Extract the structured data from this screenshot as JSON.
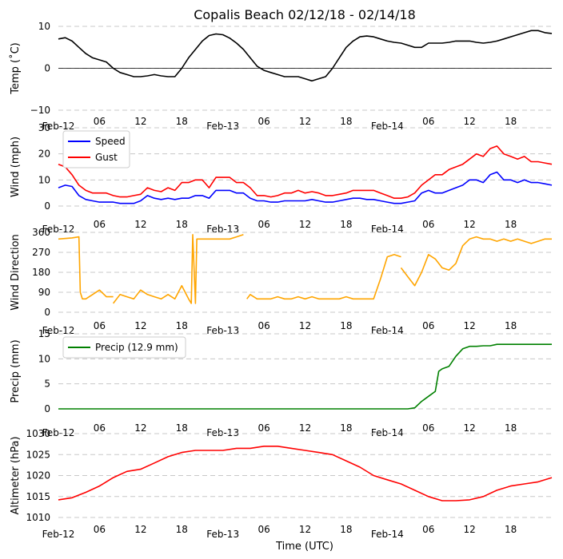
{
  "title": "Copalis Beach 02/12/18 - 02/14/18",
  "xlabel": "Time (UTC)",
  "x_tick_labels": [
    "Feb-12",
    "06",
    "12",
    "18",
    "Feb-13",
    "06",
    "12",
    "18",
    "Feb-14",
    "06",
    "12",
    "18"
  ],
  "chart_data": [
    {
      "type": "line",
      "ylabel": "Temp (˚C)",
      "ylim": [
        -10,
        10
      ],
      "yticks": [
        "10",
        "0",
        "−10"
      ],
      "zero_line": true,
      "grid": "horizontal dashed",
      "x_unit": "hours since 2018-02-12 00:00 UTC",
      "series": [
        {
          "color": "#000000",
          "x": [
            0,
            1,
            2,
            3,
            4,
            5,
            6,
            7,
            8,
            9,
            10,
            11,
            12,
            13,
            14,
            15,
            16,
            17,
            18,
            19,
            20,
            21,
            22,
            23,
            24,
            25,
            26,
            27,
            28,
            29,
            30,
            31,
            32,
            33,
            34,
            35,
            36,
            37,
            38,
            39,
            40,
            41,
            42,
            43,
            44,
            45,
            46,
            47,
            48,
            49,
            50,
            51,
            52,
            53,
            54,
            55,
            56,
            57,
            58,
            59,
            60,
            61,
            62,
            63,
            64,
            65,
            66,
            67,
            68,
            69,
            70,
            71,
            72
          ],
          "values": [
            7,
            7.3,
            6.5,
            5,
            3.5,
            2.5,
            2,
            1.5,
            0,
            -1,
            -1.5,
            -2,
            -2,
            -1.8,
            -1.5,
            -1.8,
            -2,
            -2,
            0,
            2.5,
            4.5,
            6.5,
            7.8,
            8.2,
            8,
            7.2,
            6,
            4.5,
            2.5,
            0.5,
            -0.5,
            -1,
            -1.5,
            -2,
            -2,
            -2,
            -2.5,
            -3,
            -2.5,
            -2,
            0,
            2.5,
            5,
            6.5,
            7.5,
            7.7,
            7.5,
            7,
            6.5,
            6.2,
            6,
            5.5,
            5,
            5,
            6,
            6,
            6,
            6.2,
            6.5,
            6.5,
            6.5,
            6.2,
            6,
            6.2,
            6.5,
            7,
            7.5,
            8,
            8.5,
            9,
            9,
            8.5,
            8.3
          ]
        }
      ]
    },
    {
      "type": "line",
      "ylabel": "Wind (mph)",
      "ylim": [
        0,
        30
      ],
      "yticks": [
        "30",
        "20",
        "10",
        "0"
      ],
      "grid": "horizontal dashed",
      "legend_position": "upper-left",
      "series": [
        {
          "name": "Speed",
          "color": "#0000ff",
          "x": [
            0,
            1,
            2,
            3,
            4,
            5,
            6,
            7,
            8,
            9,
            10,
            11,
            12,
            13,
            14,
            15,
            16,
            17,
            18,
            19,
            20,
            21,
            22,
            23,
            24,
            25,
            26,
            27,
            28,
            29,
            30,
            31,
            32,
            33,
            34,
            35,
            36,
            37,
            38,
            39,
            40,
            41,
            42,
            43,
            44,
            45,
            46,
            47,
            48,
            49,
            50,
            51,
            52,
            53,
            54,
            55,
            56,
            57,
            58,
            59,
            60,
            61,
            62,
            63,
            64,
            65,
            66,
            67,
            68,
            69,
            70,
            71,
            72
          ],
          "values": [
            7,
            8,
            7.5,
            4,
            2.5,
            2,
            1.5,
            1.5,
            1.5,
            1,
            1,
            1,
            2,
            4,
            3,
            2.5,
            3,
            2.5,
            3,
            3,
            4,
            4,
            3,
            6,
            6,
            6,
            5,
            5,
            3,
            2,
            2,
            1.5,
            1.5,
            2,
            2,
            2,
            2,
            2.5,
            2,
            1.5,
            1.5,
            2,
            2.5,
            3,
            3,
            2.5,
            2.5,
            2,
            1.5,
            1,
            1,
            1.5,
            2,
            5,
            6,
            5,
            5,
            6,
            7,
            8,
            10,
            10,
            9,
            12,
            13,
            10,
            10,
            9,
            10,
            9,
            9,
            8.5,
            8
          ]
        },
        {
          "name": "Gust",
          "color": "#ff0000",
          "x": [
            0,
            1,
            2,
            3,
            4,
            5,
            6,
            7,
            8,
            9,
            10,
            11,
            12,
            13,
            14,
            15,
            16,
            17,
            18,
            19,
            20,
            21,
            22,
            23,
            24,
            25,
            26,
            27,
            28,
            29,
            30,
            31,
            32,
            33,
            34,
            35,
            36,
            37,
            38,
            39,
            40,
            41,
            42,
            43,
            44,
            45,
            46,
            47,
            48,
            49,
            50,
            51,
            52,
            53,
            54,
            55,
            56,
            57,
            58,
            59,
            60,
            61,
            62,
            63,
            64,
            65,
            66,
            67,
            68,
            69,
            70,
            71,
            72
          ],
          "values": [
            16,
            15,
            12,
            8,
            6,
            5,
            5,
            5,
            4,
            3.5,
            3.5,
            4,
            4.5,
            7,
            6,
            5.5,
            7,
            6,
            9,
            9,
            10,
            10,
            7,
            11,
            11,
            11,
            9,
            9,
            7,
            4,
            4,
            3.5,
            4,
            5,
            5,
            6,
            5,
            5.5,
            5,
            4,
            4,
            4.5,
            5,
            6,
            6,
            6,
            6,
            5,
            4,
            3,
            3,
            3.5,
            5,
            8,
            10,
            12,
            12,
            14,
            15,
            16,
            18,
            20,
            19,
            22,
            23,
            20,
            19,
            18,
            19,
            17,
            17,
            16.5,
            16
          ]
        }
      ]
    },
    {
      "type": "line",
      "ylabel": "Wind Direction",
      "ylim": [
        0,
        360
      ],
      "yticks": [
        "360",
        "270",
        "180",
        "90",
        "0"
      ],
      "grid": "horizontal dashed",
      "series": [
        {
          "color": "#ffa500",
          "x": [
            0,
            2,
            3,
            3.2,
            3.5,
            4,
            5,
            6,
            7,
            8,
            null,
            8,
            9,
            10,
            11,
            12,
            13,
            14,
            15,
            16,
            17,
            18,
            19,
            19.4,
            19.6,
            20,
            20.2,
            20.4,
            21,
            22,
            23,
            24,
            25,
            26,
            27,
            null,
            27.5,
            28,
            29,
            30,
            31,
            32,
            33,
            34,
            35,
            36,
            37,
            38,
            39,
            40,
            41,
            42,
            43,
            44,
            45,
            46,
            47,
            48,
            49,
            50,
            null,
            50,
            51,
            52,
            53,
            54,
            55,
            56,
            57,
            58,
            59,
            60,
            61,
            62,
            63,
            64,
            65,
            66,
            67,
            68,
            69,
            70,
            71,
            72
          ],
          "values": [
            330,
            335,
            340,
            90,
            60,
            60,
            80,
            100,
            70,
            70,
            null,
            40,
            80,
            70,
            60,
            100,
            80,
            70,
            60,
            80,
            60,
            120,
            60,
            40,
            350,
            40,
            330,
            330,
            330,
            330,
            330,
            330,
            330,
            340,
            350,
            null,
            60,
            80,
            60,
            60,
            60,
            70,
            60,
            60,
            70,
            60,
            70,
            60,
            60,
            60,
            60,
            70,
            60,
            60,
            60,
            60,
            150,
            250,
            260,
            250,
            null,
            200,
            160,
            120,
            180,
            260,
            240,
            200,
            190,
            220,
            300,
            330,
            340,
            330,
            330,
            320,
            330,
            320,
            330,
            320,
            310,
            320,
            330,
            330
          ]
        }
      ]
    },
    {
      "type": "line",
      "ylabel": "Precip (mm)",
      "ylim": [
        0,
        15
      ],
      "yticks": [
        "15",
        "10",
        "5",
        "0"
      ],
      "grid": "horizontal dashed",
      "legend_position": "upper-left",
      "series": [
        {
          "name": "Precip (12.9 mm)",
          "color": "#008000",
          "x": [
            0,
            6,
            12,
            18,
            24,
            30,
            36,
            42,
            48,
            51,
            52,
            53,
            54,
            55,
            55.5,
            56,
            57,
            58,
            59,
            60,
            61,
            62,
            63,
            64,
            65,
            66,
            67,
            68,
            69,
            70,
            71,
            72
          ],
          "values": [
            0,
            0,
            0,
            0,
            0,
            0,
            0,
            0,
            0,
            0,
            0.2,
            1.5,
            2.5,
            3.5,
            7.5,
            8,
            8.5,
            10.5,
            12,
            12.5,
            12.5,
            12.6,
            12.6,
            12.9,
            12.9,
            12.9,
            12.9,
            12.9,
            12.9,
            12.9,
            12.9,
            12.9
          ]
        }
      ]
    },
    {
      "type": "line",
      "ylabel": "Altimeter (hPa)",
      "ylim": [
        1010,
        1030
      ],
      "yticks": [
        "1030",
        "1025",
        "1020",
        "1015",
        "1010"
      ],
      "grid": "horizontal dashed",
      "series": [
        {
          "color": "#ff0000",
          "x": [
            0,
            2,
            4,
            6,
            8,
            10,
            12,
            14,
            16,
            18,
            20,
            22,
            24,
            26,
            28,
            30,
            32,
            34,
            36,
            38,
            40,
            42,
            44,
            46,
            48,
            50,
            52,
            54,
            56,
            58,
            60,
            62,
            64,
            66,
            68,
            70,
            72
          ],
          "values": [
            1014.2,
            1014.7,
            1016,
            1017.5,
            1019.5,
            1021,
            1021.5,
            1023,
            1024.5,
            1025.5,
            1026,
            1026,
            1026,
            1026.5,
            1026.5,
            1027,
            1027,
            1026.5,
            1026,
            1025.5,
            1025,
            1023.5,
            1022,
            1020,
            1019,
            1018,
            1016.5,
            1015,
            1014,
            1014,
            1014.2,
            1015,
            1016.5,
            1017.5,
            1018,
            1018.5,
            1019.5
          ]
        }
      ]
    }
  ]
}
